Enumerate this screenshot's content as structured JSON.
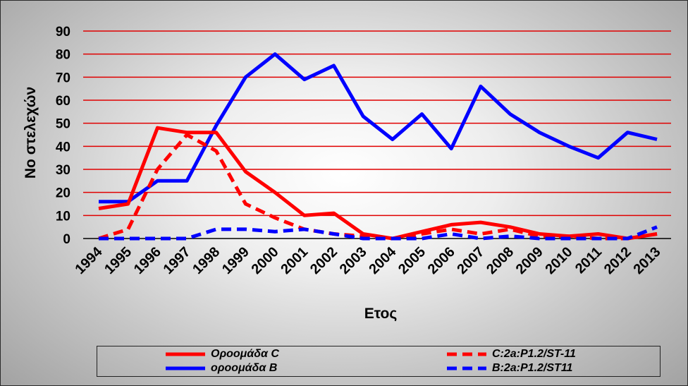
{
  "chart_data": {
    "type": "line",
    "title": "",
    "xlabel": "Ετος",
    "ylabel": "Νο στελεχών",
    "ylim": [
      0,
      90
    ],
    "yticks": [
      0,
      10,
      20,
      30,
      40,
      50,
      60,
      70,
      80,
      90
    ],
    "grid": true,
    "legend_position": "bottom",
    "x": [
      "1994",
      "1995",
      "1996",
      "1997",
      "1998",
      "1999",
      "2000",
      "2001",
      "2002",
      "2003",
      "2004",
      "2005",
      "2006",
      "2007",
      "2008",
      "2009",
      "2010",
      "2011",
      "2012",
      "2013"
    ],
    "series": [
      {
        "name": "Οροομάδα C",
        "color": "#ff0000",
        "style": "solid",
        "values": [
          13,
          15,
          48,
          46,
          46,
          29,
          20,
          10,
          11,
          2,
          0,
          3,
          6,
          7,
          5,
          2,
          1,
          2,
          0,
          2
        ]
      },
      {
        "name": "C:2a:P1.2/ST-11",
        "color": "#ff0000",
        "style": "dashed",
        "values": [
          0,
          4,
          30,
          45,
          38,
          15,
          9,
          4,
          2,
          1,
          0,
          2,
          4,
          2,
          4,
          1,
          1,
          0,
          0,
          2
        ]
      },
      {
        "name": "οροομάδα Β",
        "color": "#0000ff",
        "style": "solid",
        "values": [
          16,
          16,
          25,
          25,
          49,
          70,
          80,
          69,
          75,
          53,
          43,
          54,
          39,
          66,
          54,
          46,
          40,
          35,
          46,
          43
        ]
      },
      {
        "name": "B:2a:P1.2/ST11",
        "color": "#0000ff",
        "style": "dashed",
        "values": [
          0,
          0,
          0,
          0,
          4,
          4,
          3,
          4,
          2,
          0,
          0,
          0,
          2,
          0,
          1,
          0,
          0,
          0,
          0,
          5
        ]
      }
    ]
  }
}
